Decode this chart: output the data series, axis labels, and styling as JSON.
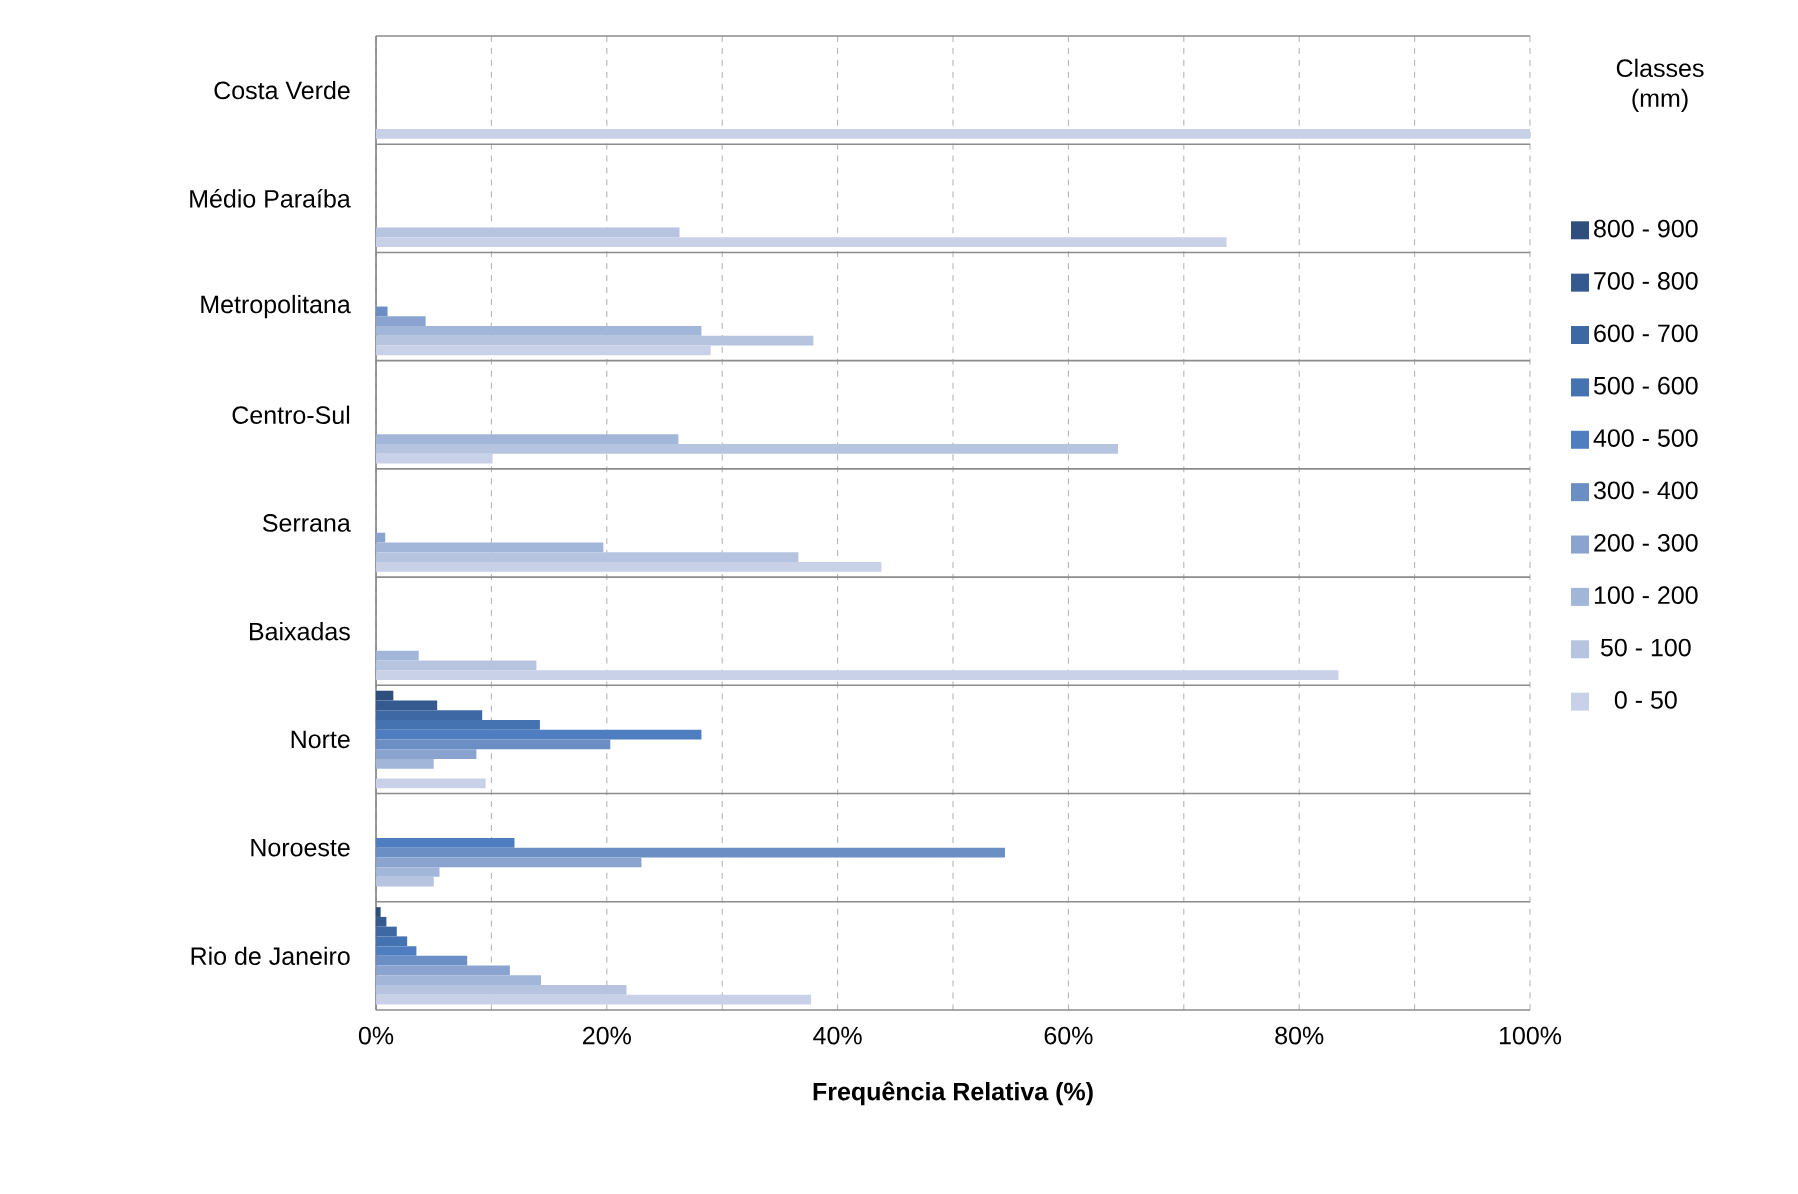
{
  "chart_data": {
    "type": "bar",
    "orientation": "horizontal",
    "xlabel": "Frequência Relativa (%)",
    "legend_title": "Classes (mm)",
    "legend": "right",
    "grid": "x",
    "categories": [
      "Costa Verde",
      "Médio Paraíba",
      "Metropolitana",
      "Centro-Sul",
      "Serrana",
      "Baixadas",
      "Norte",
      "Noroeste",
      "Rio de Janeiro"
    ],
    "xlim": [
      0,
      100
    ],
    "xticks": [
      {
        "value": 0,
        "label": "0%"
      },
      {
        "value": 10,
        "label": null
      },
      {
        "value": 20,
        "label": "20%"
      },
      {
        "value": 30,
        "label": null
      },
      {
        "value": 40,
        "label": "40%"
      },
      {
        "value": 50,
        "label": null
      },
      {
        "value": 60,
        "label": "60%"
      },
      {
        "value": 70,
        "label": null
      },
      {
        "value": 80,
        "label": "80%"
      },
      {
        "value": 90,
        "label": null
      },
      {
        "value": 100,
        "label": "100%"
      }
    ],
    "series": [
      {
        "name": "800 - 900",
        "color": "#2e4e7e",
        "values": [
          0,
          0,
          0,
          0,
          0,
          0,
          1.5,
          0,
          0.4
        ]
      },
      {
        "name": "700 - 800",
        "color": "#355a8f",
        "values": [
          0,
          0,
          0,
          0,
          0,
          0,
          5.3,
          0,
          0.9
        ]
      },
      {
        "name": "600 - 700",
        "color": "#3d68a3",
        "values": [
          0,
          0,
          0,
          0,
          0,
          0,
          9.2,
          0,
          1.8
        ]
      },
      {
        "name": "500 - 600",
        "color": "#4572b0",
        "values": [
          0,
          0,
          0,
          0,
          0,
          0,
          14.2,
          0,
          2.7
        ]
      },
      {
        "name": "400 - 500",
        "color": "#4f7ec0",
        "values": [
          0,
          0,
          0,
          0,
          0,
          0,
          28.2,
          12,
          3.5
        ]
      },
      {
        "name": "300 - 400",
        "color": "#6b8ec4",
        "values": [
          0,
          0,
          1.0,
          0,
          0,
          0,
          20.3,
          54.5,
          7.9
        ]
      },
      {
        "name": "200 - 300",
        "color": "#8aa4cf",
        "values": [
          0,
          0,
          4.3,
          0,
          0.8,
          0,
          8.7,
          23,
          11.6
        ]
      },
      {
        "name": "100 - 200",
        "color": "#a2b6d9",
        "values": [
          0,
          0,
          28.2,
          26.2,
          19.7,
          3.7,
          5.0,
          5.5,
          14.3
        ]
      },
      {
        "name": "50 - 100",
        "color": "#b7c4e0",
        "values": [
          0,
          26.3,
          37.9,
          64.3,
          36.6,
          13.9,
          0,
          5,
          21.7
        ]
      },
      {
        "name": "0 - 50",
        "color": "#c9d1e8",
        "values": [
          100,
          73.7,
          29,
          10.1,
          43.8,
          83.4,
          9.5,
          0,
          37.7
        ]
      }
    ]
  }
}
